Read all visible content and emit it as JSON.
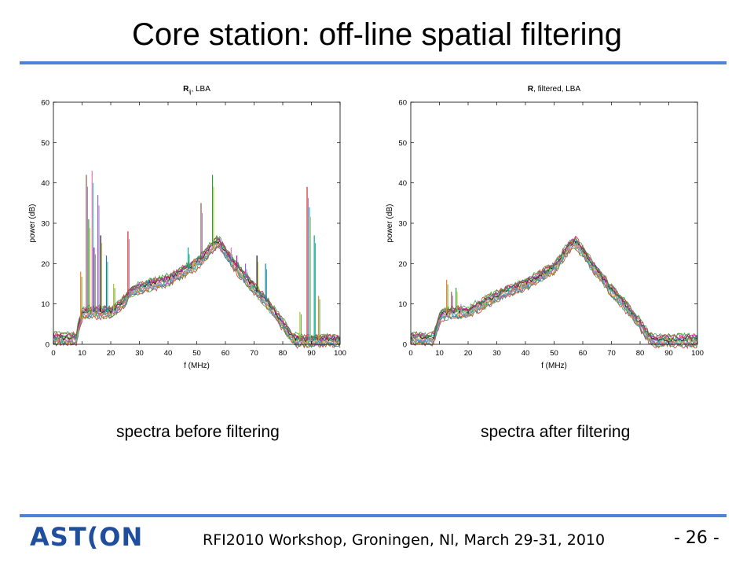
{
  "slide": {
    "title": "Core station: off-line spatial filtering",
    "accent_color": "#4f81d6",
    "caption_left": "spectra before filtering",
    "caption_right": "spectra after filtering",
    "footer": "RFI2010 Workshop, Groningen, Nl, March 29-31, 2010",
    "page_number": "- 26 -",
    "logo": {
      "text_a": "AST",
      "text_r": "(",
      "text_b": "ON",
      "color": "#1f4e9c"
    }
  },
  "chart_data": [
    {
      "type": "line",
      "title_main": "R",
      "title_sub": "ij",
      "title_rest": ", LBA",
      "xlabel": "f (MHz)",
      "ylabel": "power (dB)",
      "xlim": [
        0,
        100
      ],
      "ylim": [
        0,
        60
      ],
      "xticks": [
        0,
        10,
        20,
        30,
        40,
        50,
        60,
        70,
        80,
        90,
        100
      ],
      "yticks": [
        0,
        10,
        20,
        30,
        40,
        50,
        60
      ],
      "envelope": {
        "x": [
          0,
          8,
          9,
          10,
          11,
          15,
          20,
          22,
          25,
          27,
          30,
          40,
          50,
          55,
          57,
          58,
          60,
          65,
          70,
          75,
          80,
          83,
          85,
          87,
          90,
          100
        ],
        "y": [
          1.5,
          1.5,
          5,
          7.5,
          8,
          8,
          8,
          9,
          11,
          13,
          14,
          16,
          20,
          24,
          25.5,
          25,
          23,
          18,
          14,
          10,
          5,
          2,
          1,
          1,
          1,
          1
        ]
      },
      "spikes": [
        {
          "x": 9.5,
          "y": 18
        },
        {
          "x": 11.5,
          "y": 42
        },
        {
          "x": 12.3,
          "y": 31
        },
        {
          "x": 13.5,
          "y": 43
        },
        {
          "x": 14.2,
          "y": 24
        },
        {
          "x": 15.5,
          "y": 37
        },
        {
          "x": 16.5,
          "y": 27
        },
        {
          "x": 18.5,
          "y": 22
        },
        {
          "x": 21,
          "y": 15
        },
        {
          "x": 26,
          "y": 28
        },
        {
          "x": 33,
          "y": 16
        },
        {
          "x": 47,
          "y": 24
        },
        {
          "x": 49,
          "y": 21
        },
        {
          "x": 51.5,
          "y": 35
        },
        {
          "x": 55.5,
          "y": 42
        },
        {
          "x": 62,
          "y": 24
        },
        {
          "x": 64,
          "y": 22
        },
        {
          "x": 67,
          "y": 20
        },
        {
          "x": 71,
          "y": 22
        },
        {
          "x": 74,
          "y": 20
        },
        {
          "x": 86,
          "y": 8
        },
        {
          "x": 88.5,
          "y": 39
        },
        {
          "x": 89.3,
          "y": 34
        },
        {
          "x": 91,
          "y": 27
        },
        {
          "x": 92.5,
          "y": 12
        }
      ]
    },
    {
      "type": "line",
      "title_main": "R",
      "title_sub": "",
      "title_rest": ", filtered, LBA",
      "xlabel": "f (MHz)",
      "ylabel": "power (dB)",
      "xlim": [
        0,
        100
      ],
      "ylim": [
        0,
        60
      ],
      "xticks": [
        0,
        10,
        20,
        30,
        40,
        50,
        60,
        70,
        80,
        90,
        100
      ],
      "yticks": [
        0,
        10,
        20,
        30,
        40,
        50,
        60
      ],
      "envelope": {
        "x": [
          0,
          8,
          9,
          10,
          11,
          15,
          20,
          22,
          25,
          27,
          30,
          40,
          50,
          55,
          57,
          58,
          60,
          65,
          70,
          75,
          80,
          83,
          85,
          87,
          90,
          100
        ],
        "y": [
          1.5,
          1.5,
          4,
          6.5,
          7.5,
          8,
          8,
          9,
          10,
          11,
          12,
          15,
          19,
          24,
          25.5,
          25,
          23,
          18,
          13.5,
          9.5,
          5,
          2,
          1,
          1,
          1,
          1
        ]
      },
      "spikes": [
        {
          "x": 12.5,
          "y": 16
        },
        {
          "x": 14.2,
          "y": 13
        },
        {
          "x": 15.8,
          "y": 14
        },
        {
          "x": 17.5,
          "y": 10
        },
        {
          "x": 26,
          "y": 10.5
        }
      ]
    }
  ]
}
